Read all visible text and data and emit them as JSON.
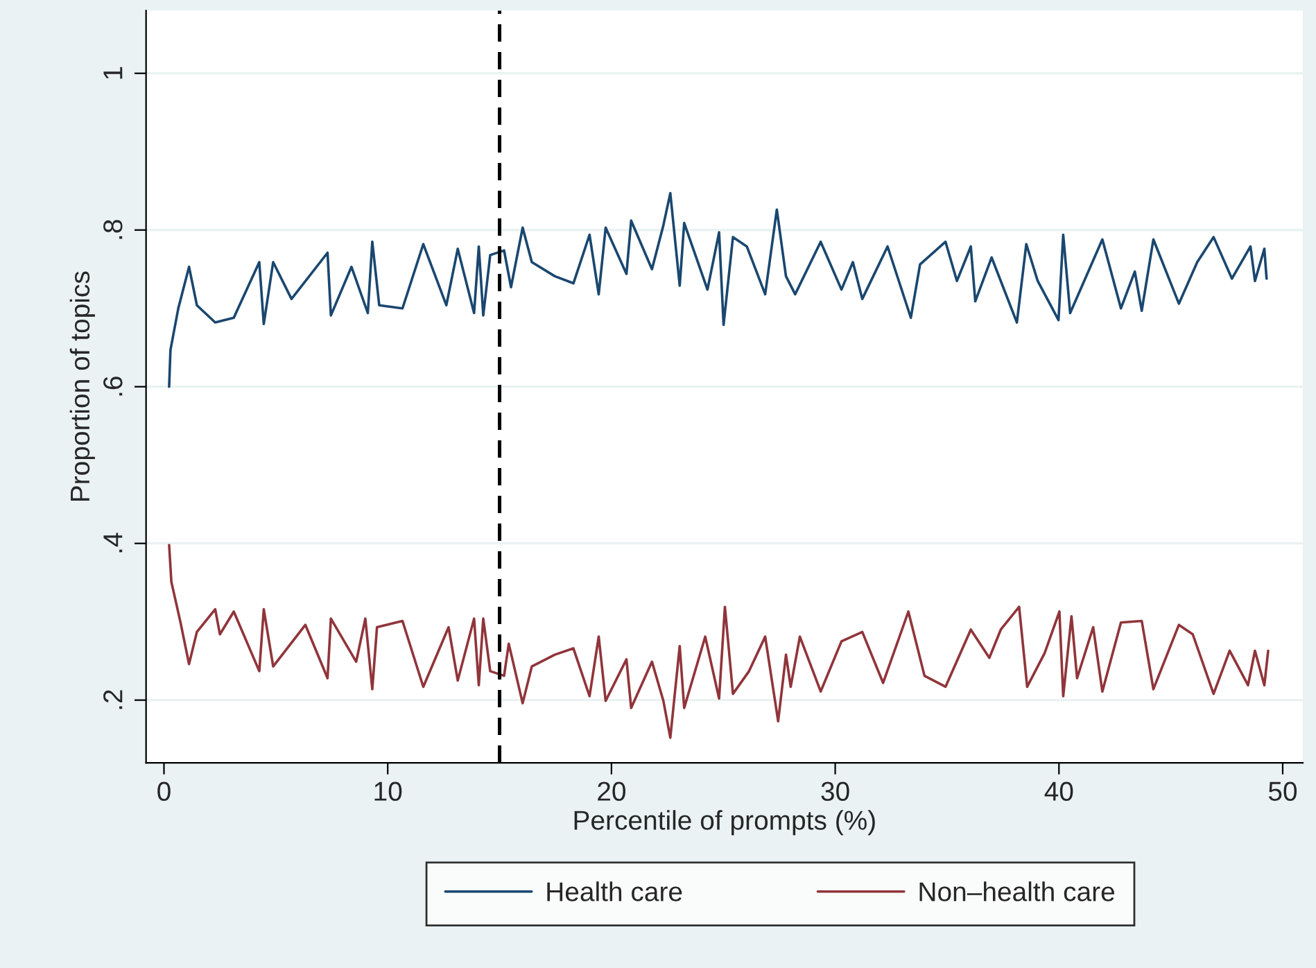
{
  "chart_data": {
    "type": "line",
    "xlabel": "Percentile of prompts (%)",
    "ylabel": "Proportion of topics",
    "xlim": [
      -0.8,
      50.9
    ],
    "ylim": [
      0.12,
      1.08
    ],
    "xticks": [
      0,
      10,
      20,
      30,
      40,
      50
    ],
    "yticks": [
      {
        "value": 0.2,
        "label": ".2"
      },
      {
        "value": 0.4,
        "label": ".4"
      },
      {
        "value": 0.6,
        "label": ".6"
      },
      {
        "value": 0.8,
        "label": ".8"
      },
      1
    ],
    "grid": "y",
    "legend": "bottom",
    "line_style": "solid",
    "marker": "none",
    "ref_lines": [
      {
        "axis": "x",
        "value": 15,
        "color": "#000000",
        "line_style": "dashed"
      }
    ],
    "series": [
      {
        "name": "Health care",
        "color": "#1a476f",
        "x": [
          0.23,
          0.29,
          0.64,
          1.12,
          1.47,
          2.29,
          3.12,
          4.26,
          4.46,
          4.88,
          5.7,
          7.31,
          7.46,
          8.38,
          9.11,
          9.31,
          9.62,
          10.66,
          11.59,
          12.62,
          13.13,
          13.86,
          14.07,
          14.27,
          14.58,
          15.2,
          15.51,
          16.03,
          16.44,
          17.47,
          18.3,
          19.02,
          19.43,
          19.74,
          20.67,
          20.88,
          21.81,
          22.32,
          22.63,
          23.05,
          23.25,
          24.29,
          24.81,
          25.01,
          25.43,
          26.05,
          26.87,
          27.39,
          27.8,
          28.21,
          29.35,
          30.28,
          30.79,
          31.21,
          32.34,
          33.38,
          33.79,
          34.93,
          35.44,
          36.06,
          36.26,
          36.99,
          38.12,
          38.54,
          39.05,
          39.98,
          40.19,
          40.5,
          41.94,
          42.77,
          43.39,
          43.7,
          44.22,
          45.36,
          46.18,
          46.91,
          47.73,
          48.56,
          48.76,
          49.18,
          49.28
        ],
        "values": [
          0.6,
          0.647,
          0.7,
          0.753,
          0.704,
          0.682,
          0.688,
          0.759,
          0.68,
          0.759,
          0.712,
          0.771,
          0.691,
          0.753,
          0.694,
          0.785,
          0.704,
          0.7,
          0.782,
          0.704,
          0.776,
          0.694,
          0.779,
          0.691,
          0.768,
          0.774,
          0.727,
          0.803,
          0.759,
          0.741,
          0.732,
          0.794,
          0.718,
          0.803,
          0.744,
          0.812,
          0.75,
          0.806,
          0.847,
          0.729,
          0.809,
          0.724,
          0.797,
          0.679,
          0.791,
          0.779,
          0.718,
          0.826,
          0.741,
          0.718,
          0.785,
          0.724,
          0.759,
          0.712,
          0.779,
          0.688,
          0.756,
          0.785,
          0.735,
          0.779,
          0.709,
          0.765,
          0.682,
          0.782,
          0.735,
          0.685,
          0.794,
          0.694,
          0.788,
          0.7,
          0.747,
          0.697,
          0.788,
          0.706,
          0.759,
          0.791,
          0.738,
          0.779,
          0.735,
          0.776,
          0.738
        ]
      },
      {
        "name": "Non–health care",
        "color": "#90353b",
        "x": [
          0.23,
          0.33,
          0.74,
          1.12,
          1.47,
          2.29,
          2.5,
          3.12,
          4.26,
          4.46,
          4.88,
          6.32,
          7.31,
          7.46,
          8.59,
          9.0,
          9.31,
          9.52,
          10.66,
          11.59,
          12.72,
          13.13,
          13.86,
          14.07,
          14.27,
          14.58,
          15.2,
          15.41,
          16.03,
          16.44,
          17.47,
          18.3,
          19.02,
          19.43,
          19.74,
          20.67,
          20.88,
          21.81,
          22.32,
          22.63,
          23.05,
          23.25,
          24.19,
          24.81,
          25.07,
          25.43,
          26.15,
          26.87,
          27.45,
          27.8,
          28.01,
          28.42,
          29.35,
          30.28,
          31.21,
          32.14,
          33.27,
          33.99,
          34.93,
          36.06,
          36.89,
          37.4,
          38.22,
          38.58,
          39.36,
          40.02,
          40.19,
          40.56,
          40.81,
          41.53,
          41.94,
          42.77,
          43.7,
          44.22,
          45.36,
          45.98,
          46.91,
          47.63,
          48.45,
          48.76,
          49.18,
          49.35
        ],
        "values": [
          0.398,
          0.351,
          0.299,
          0.246,
          0.287,
          0.316,
          0.284,
          0.313,
          0.237,
          0.316,
          0.243,
          0.296,
          0.228,
          0.304,
          0.249,
          0.304,
          0.214,
          0.293,
          0.301,
          0.217,
          0.293,
          0.225,
          0.304,
          0.219,
          0.304,
          0.237,
          0.231,
          0.272,
          0.196,
          0.243,
          0.258,
          0.266,
          0.205,
          0.281,
          0.199,
          0.252,
          0.19,
          0.249,
          0.199,
          0.152,
          0.269,
          0.19,
          0.281,
          0.202,
          0.319,
          0.208,
          0.237,
          0.281,
          0.173,
          0.258,
          0.217,
          0.281,
          0.211,
          0.275,
          0.287,
          0.222,
          0.313,
          0.231,
          0.217,
          0.29,
          0.254,
          0.29,
          0.319,
          0.217,
          0.26,
          0.313,
          0.205,
          0.307,
          0.228,
          0.293,
          0.211,
          0.299,
          0.301,
          0.214,
          0.296,
          0.284,
          0.208,
          0.263,
          0.219,
          0.263,
          0.219,
          0.263
        ]
      }
    ]
  }
}
